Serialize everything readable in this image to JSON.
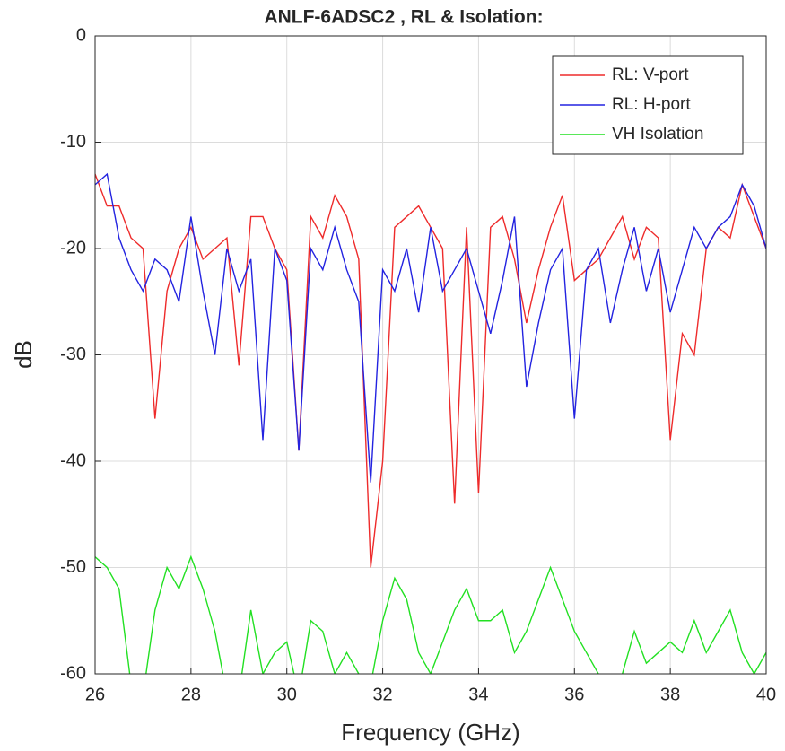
{
  "chart_data": {
    "type": "line",
    "title": "ANLF-6ADSC2 , RL & Isolation:",
    "xlabel": "Frequency (GHz)",
    "ylabel": "dB",
    "x": [
      26,
      26.25,
      26.5,
      26.75,
      27,
      27.25,
      27.5,
      27.75,
      28,
      28.25,
      28.5,
      28.75,
      29,
      29.25,
      29.5,
      29.75,
      30,
      30.25,
      30.5,
      30.75,
      31,
      31.25,
      31.5,
      31.75,
      32,
      32.25,
      32.5,
      32.75,
      33,
      33.25,
      33.5,
      33.75,
      34,
      34.25,
      34.5,
      34.75,
      35,
      35.25,
      35.5,
      35.75,
      36,
      36.25,
      36.5,
      36.75,
      37,
      37.25,
      37.5,
      37.75,
      38,
      38.25,
      38.5,
      38.75,
      39,
      39.25,
      39.5,
      39.75,
      40
    ],
    "series": [
      {
        "name": "RL: V-port",
        "color": "#ee2b2b",
        "values": [
          -13,
          -16,
          -16,
          -19,
          -20,
          -36,
          -24,
          -20,
          -18,
          -21,
          -20,
          -19,
          -31,
          -17,
          -17,
          -20,
          -22,
          -39,
          -17,
          -19,
          -15,
          -17,
          -21,
          -50,
          -40,
          -18,
          -17,
          -16,
          -18,
          -20,
          -44,
          -18,
          -43,
          -18,
          -17,
          -21,
          -27,
          -22,
          -18,
          -15,
          -23,
          -22,
          -21,
          -19,
          -17,
          -21,
          -18,
          -19,
          -38,
          -28,
          -30,
          -20,
          -18,
          -19,
          -14,
          -17,
          -20
        ]
      },
      {
        "name": "RL: H-port",
        "color": "#2323e0",
        "values": [
          -14,
          -13,
          -19,
          -22,
          -24,
          -21,
          -22,
          -25,
          -17,
          -24,
          -30,
          -20,
          -24,
          -21,
          -38,
          -20,
          -23,
          -39,
          -20,
          -22,
          -18,
          -22,
          -25,
          -42,
          -22,
          -24,
          -20,
          -26,
          -18,
          -24,
          -22,
          -20,
          -24,
          -28,
          -23,
          -17,
          -33,
          -27,
          -22,
          -20,
          -36,
          -22,
          -20,
          -27,
          -22,
          -18,
          -24,
          -20,
          -26,
          -22,
          -18,
          -20,
          -18,
          -17,
          -14,
          -16,
          -20
        ]
      },
      {
        "name": "VH Isolation",
        "color": "#22e022",
        "values": [
          -49,
          -50,
          -52,
          -61,
          -62,
          -54,
          -50,
          -52,
          -49,
          -52,
          -56,
          -62,
          -62,
          -54,
          -60,
          -58,
          -57,
          -62,
          -55,
          -56,
          -60,
          -58,
          -60,
          -61,
          -55,
          -51,
          -53,
          -58,
          -60,
          -57,
          -54,
          -52,
          -55,
          -55,
          -54,
          -58,
          -56,
          -53,
          -50,
          -53,
          -56,
          -58,
          -60,
          -62,
          -60,
          -56,
          -59,
          -58,
          -57,
          -58,
          -55,
          -58,
          -56,
          -54,
          -58,
          -60,
          -58
        ]
      }
    ],
    "xlim": [
      26,
      40
    ],
    "ylim": [
      -60,
      0
    ],
    "xticks": [
      26,
      28,
      30,
      32,
      34,
      36,
      38,
      40
    ],
    "yticks": [
      0,
      -10,
      -20,
      -30,
      -40,
      -50,
      -60
    ],
    "grid": true,
    "legend": "upper-right"
  }
}
